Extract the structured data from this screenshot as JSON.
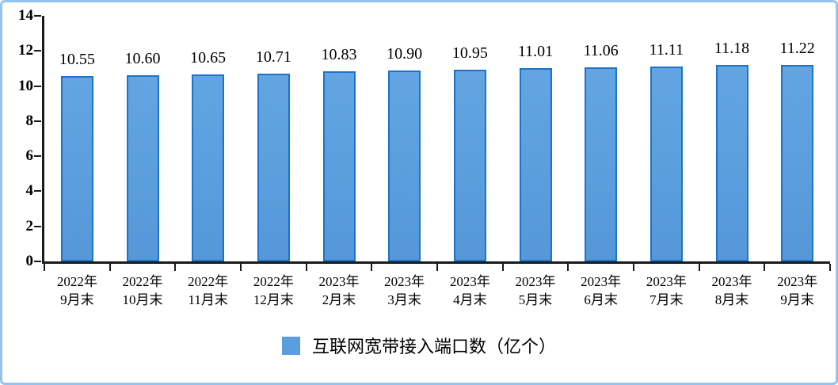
{
  "chart_data": {
    "type": "bar",
    "title": "",
    "categories": [
      "2022年9月末",
      "2022年10月末",
      "2022年11月末",
      "2022年12月末",
      "2023年2月末",
      "2023年3月末",
      "2023年4月末",
      "2023年5月末",
      "2023年6月末",
      "2023年7月末",
      "2023年8月末",
      "2023年9月末"
    ],
    "category_lines": [
      [
        "2022年",
        "9月末"
      ],
      [
        "2022年",
        "10月末"
      ],
      [
        "2022年",
        "11月末"
      ],
      [
        "2022年",
        "12月末"
      ],
      [
        "2023年",
        "2月末"
      ],
      [
        "2023年",
        "3月末"
      ],
      [
        "2023年",
        "4月末"
      ],
      [
        "2023年",
        "5月末"
      ],
      [
        "2023年",
        "6月末"
      ],
      [
        "2023年",
        "7月末"
      ],
      [
        "2023年",
        "8月末"
      ],
      [
        "2023年",
        "9月末"
      ]
    ],
    "values": [
      10.55,
      10.6,
      10.65,
      10.71,
      10.83,
      10.9,
      10.95,
      11.01,
      11.06,
      11.11,
      11.18,
      11.22
    ],
    "value_labels": [
      "10.55",
      "10.60",
      "10.65",
      "10.71",
      "10.83",
      "10.90",
      "10.95",
      "11.01",
      "11.06",
      "11.11",
      "11.18",
      "11.22"
    ],
    "series_name": "互联网宽带接入端口数（亿个）",
    "xlabel": "",
    "ylabel": "",
    "ylim": [
      0,
      14
    ],
    "yticks": [
      0,
      2,
      4,
      6,
      8,
      10,
      12,
      14
    ],
    "grid": false,
    "legend_position": "bottom",
    "colors": {
      "bar_fill": "#5b9ede",
      "bar_border": "#1b74c8",
      "axis": "#1a1a1a",
      "frame_border": "#93c4f1"
    }
  },
  "legend": {
    "label": "互联网宽带接入端口数（亿个）"
  }
}
